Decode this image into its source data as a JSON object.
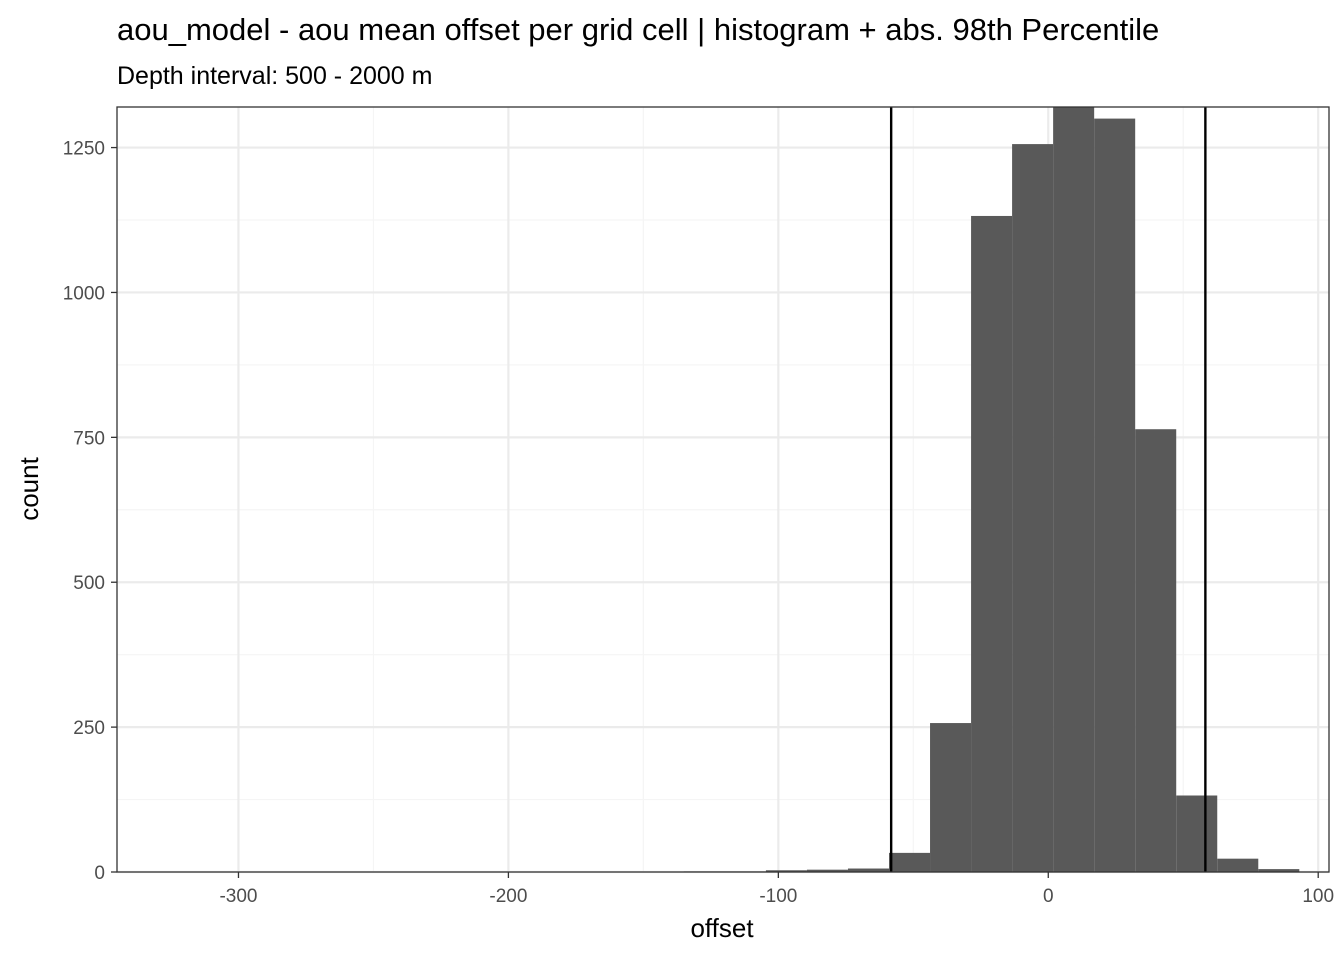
{
  "chart_data": {
    "type": "bar",
    "title": "aou_model  -  aou mean offset per grid cell | histogram + abs. 98th Percentile",
    "subtitle": "Depth interval: 500 - 2000 m",
    "xlabel": "offset",
    "ylabel": "count",
    "xlim": [
      -345,
      104
    ],
    "ylim": [
      0,
      1320
    ],
    "x_ticks": [
      -300,
      -200,
      -100,
      0,
      100
    ],
    "x_tick_labels": [
      "-300",
      "-200",
      "-100",
      "0",
      "100"
    ],
    "y_ticks": [
      0,
      250,
      500,
      750,
      1000,
      1250
    ],
    "y_tick_labels": [
      "0",
      "250",
      "500",
      "750",
      "1000",
      "1250"
    ],
    "grid": true,
    "bins": [
      {
        "x0": -330,
        "x1": -315,
        "count": 0
      },
      {
        "x0": -315,
        "x1": -300,
        "count": 0
      },
      {
        "x0": -300,
        "x1": -285,
        "count": 0
      },
      {
        "x0": -285,
        "x1": -270,
        "count": 0
      },
      {
        "x0": -270,
        "x1": -255,
        "count": 0
      },
      {
        "x0": -255,
        "x1": -240,
        "count": 0
      },
      {
        "x0": -240,
        "x1": -225,
        "count": 0
      },
      {
        "x0": -225,
        "x1": -210,
        "count": 0
      },
      {
        "x0": -210,
        "x1": -195,
        "count": 0
      },
      {
        "x0": -195,
        "x1": -180,
        "count": 0
      },
      {
        "x0": -180,
        "x1": -165,
        "count": 0
      },
      {
        "x0": -165,
        "x1": -150,
        "count": 0
      },
      {
        "x0": -150,
        "x1": -135,
        "count": 0
      },
      {
        "x0": -135,
        "x1": -120,
        "count": 1
      },
      {
        "x0": -120,
        "x1": -104.6,
        "count": 1
      },
      {
        "x0": -104.6,
        "x1": -89.4,
        "count": 3
      },
      {
        "x0": -89.4,
        "x1": -74.2,
        "count": 4
      },
      {
        "x0": -74.2,
        "x1": -59,
        "count": 6
      },
      {
        "x0": -59,
        "x1": -43.8,
        "count": 33
      },
      {
        "x0": -43.8,
        "x1": -28.6,
        "count": 257
      },
      {
        "x0": -28.6,
        "x1": -13.4,
        "count": 1132
      },
      {
        "x0": -13.4,
        "x1": 1.8,
        "count": 1256
      },
      {
        "x0": 1.8,
        "x1": 17,
        "count": 1320
      },
      {
        "x0": 17,
        "x1": 32.2,
        "count": 1300
      },
      {
        "x0": 32.2,
        "x1": 47.4,
        "count": 764
      },
      {
        "x0": 47.4,
        "x1": 62.6,
        "count": 132
      },
      {
        "x0": 62.6,
        "x1": 77.8,
        "count": 23
      },
      {
        "x0": 77.8,
        "x1": 93,
        "count": 5
      }
    ],
    "percentile_lines": [
      -58.2,
      58.2
    ],
    "colors": {
      "bar": "#595959",
      "line": "#000000",
      "grid_major": "#ebebeb",
      "grid_minor": "#f5f5f5",
      "panel_border": "#333333"
    }
  }
}
